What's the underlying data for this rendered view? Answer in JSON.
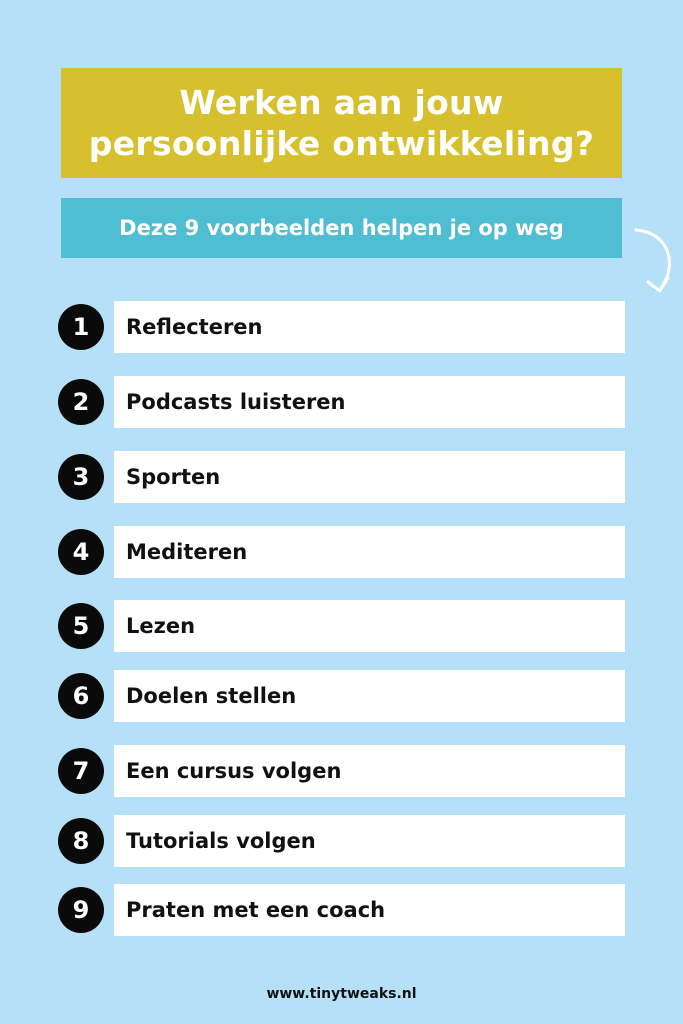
{
  "title": "Werken aan jouw\npersoonlijke ontwikkeling?",
  "subtitle": "Deze 9 voorbeelden helpen je op weg",
  "items": [
    {
      "number": "1",
      "label": "Reflecteren"
    },
    {
      "number": "2",
      "label": "Podcasts luisteren"
    },
    {
      "number": "3",
      "label": "Sporten"
    },
    {
      "number": "4",
      "label": "Mediteren"
    },
    {
      "number": "5",
      "label": "Lezen"
    },
    {
      "number": "6",
      "label": "Doelen stellen"
    },
    {
      "number": "7",
      "label": "Een cursus volgen"
    },
    {
      "number": "8",
      "label": "Tutorials volgen"
    },
    {
      "number": "9",
      "label": "Praten met een coach"
    }
  ],
  "footer": "www.tinytweaks.nl",
  "colors": {
    "background": "#b5e0f7",
    "title_box": "#d6c02d",
    "subtitle_box": "#4fbdd2",
    "number_circle": "#0a0a0a"
  },
  "icons": {
    "arrow": "curved-arrow-down-icon"
  }
}
